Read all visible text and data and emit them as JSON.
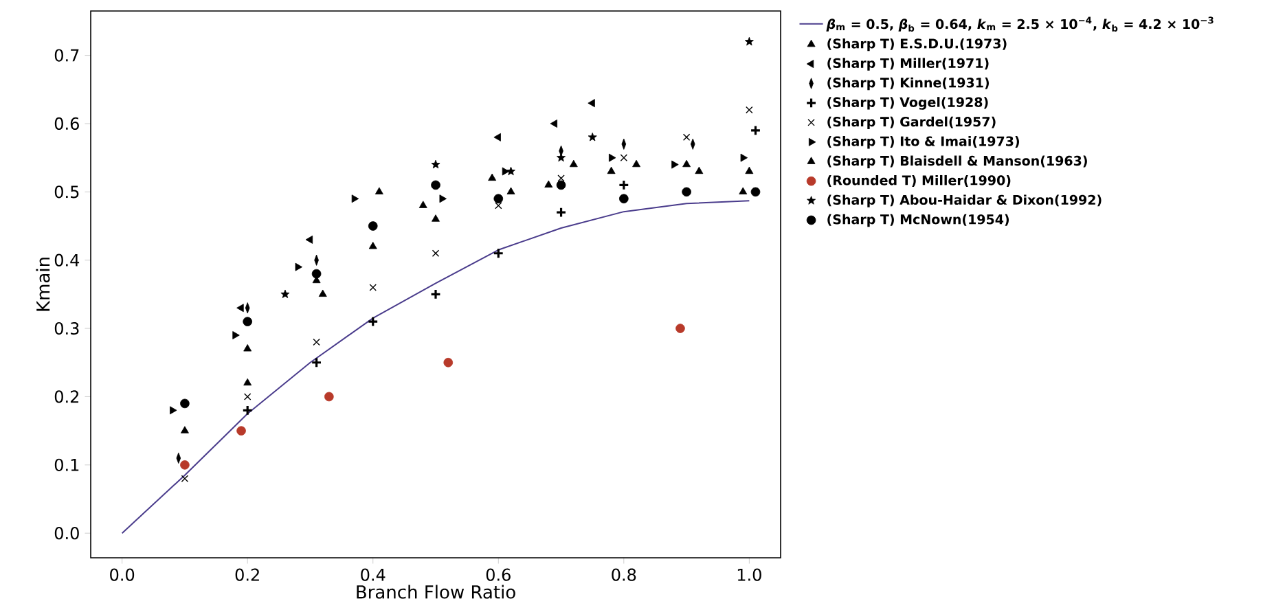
{
  "chart_data": {
    "type": "scatter",
    "xlabel": "Branch Flow Ratio",
    "ylabel": "Kmain",
    "xlim": [
      -0.05,
      1.05
    ],
    "ylim": [
      -0.036,
      0.765
    ],
    "xticks": [
      {
        "value": 0,
        "label": "0.0"
      },
      0.2,
      0.4,
      0.6,
      0.8,
      {
        "value": 1,
        "label": "1.0"
      }
    ],
    "yticks": [
      {
        "value": 0,
        "label": "0.0"
      },
      0.1,
      0.2,
      0.3,
      0.4,
      0.5,
      0.6,
      0.7
    ],
    "legend": "right",
    "series": [
      {
        "name": "*β*$_{m}$ = 0.5, *β*$_{b}$ = 0.64, *k*$_{m}$ = 2.5 × 10$^{−4}$, *k*$_{b}$ = 4.2 × 10$^{−3}$",
        "type": "line",
        "color": "#4a3c8c",
        "marker": "none",
        "x": [
          0,
          0.1,
          0.2,
          0.3,
          0.4,
          0.5,
          0.6,
          0.7,
          0.8,
          0.9,
          1.0
        ],
        "values": [
          0,
          0.085,
          0.175,
          0.25,
          0.315,
          0.366,
          0.415,
          0.447,
          0.471,
          0.483,
          0.487
        ]
      },
      {
        "name": "(Sharp T) E.S.D.U.(1973)",
        "color": "#000000",
        "marker": "triangle",
        "x": [
          0.1,
          0.2,
          0.32,
          0.41,
          0.48,
          0.59,
          0.72,
          0.82,
          0.92,
          1.0
        ],
        "values": [
          0.15,
          0.27,
          0.35,
          0.5,
          0.48,
          0.52,
          0.54,
          0.54,
          0.53,
          0.53
        ]
      },
      {
        "name": "(Sharp T) Miller(1971)",
        "color": "#000000",
        "marker": "triangle_left",
        "x": [
          0.19,
          0.3,
          0.6,
          0.69,
          0.75
        ],
        "values": [
          0.33,
          0.43,
          0.58,
          0.6,
          0.63
        ]
      },
      {
        "name": "(Sharp T) Kinne(1931)",
        "color": "#000000",
        "marker": "diamond",
        "x": [
          0.09,
          0.2,
          0.31,
          0.7,
          0.8,
          0.91
        ],
        "values": [
          0.11,
          0.33,
          0.4,
          0.56,
          0.57,
          0.57
        ]
      },
      {
        "name": "(Sharp T) Vogel(1928)",
        "color": "#000000",
        "marker": "plus",
        "x": [
          0.2,
          0.31,
          0.4,
          0.5,
          0.6,
          0.7,
          0.8,
          1.01
        ],
        "values": [
          0.18,
          0.25,
          0.31,
          0.35,
          0.41,
          0.47,
          0.51,
          0.59
        ]
      },
      {
        "name": "(Sharp T) Gardel(1957)",
        "color": "#000000",
        "marker": "cross",
        "x": [
          0.1,
          0.2,
          0.31,
          0.4,
          0.5,
          0.6,
          0.7,
          0.8,
          0.9,
          1.0
        ],
        "values": [
          0.08,
          0.2,
          0.28,
          0.36,
          0.41,
          0.48,
          0.52,
          0.55,
          0.58,
          0.62
        ]
      },
      {
        "name": "(Sharp T) Ito & Imai(1973)",
        "color": "#000000",
        "marker": "triangle_right",
        "x": [
          0.08,
          0.18,
          0.28,
          0.37,
          0.51,
          0.61,
          0.78,
          0.88,
          0.99
        ],
        "values": [
          0.18,
          0.29,
          0.39,
          0.49,
          0.49,
          0.53,
          0.55,
          0.54,
          0.55
        ]
      },
      {
        "name": "(Sharp T) Blaisdell & Manson(1963)",
        "color": "#000000",
        "marker": "triangle",
        "x": [
          0.2,
          0.31,
          0.4,
          0.5,
          0.62,
          0.68,
          0.78,
          0.9,
          0.99
        ],
        "values": [
          0.22,
          0.37,
          0.42,
          0.46,
          0.5,
          0.51,
          0.53,
          0.54,
          0.5
        ]
      },
      {
        "name": "(Rounded T) Miller(1990)",
        "color": "#b83a2a",
        "marker": "circle",
        "x": [
          0.1,
          0.19,
          0.33,
          0.52,
          0.89
        ],
        "values": [
          0.1,
          0.15,
          0.2,
          0.25,
          0.3
        ]
      },
      {
        "name": "(Sharp T) Abou-Haidar & Dixon(1992)",
        "color": "#000000",
        "marker": "star",
        "x": [
          0.26,
          0.5,
          0.62,
          0.7,
          0.75,
          1.0
        ],
        "values": [
          0.35,
          0.54,
          0.53,
          0.55,
          0.58,
          0.72
        ]
      },
      {
        "name": "(Sharp T) McNown(1954)",
        "color": "#000000",
        "marker": "circle",
        "x": [
          0.1,
          0.2,
          0.31,
          0.4,
          0.5,
          0.6,
          0.7,
          0.8,
          0.9,
          1.01
        ],
        "values": [
          0.19,
          0.31,
          0.38,
          0.45,
          0.51,
          0.49,
          0.51,
          0.49,
          0.5,
          0.5
        ]
      }
    ]
  }
}
